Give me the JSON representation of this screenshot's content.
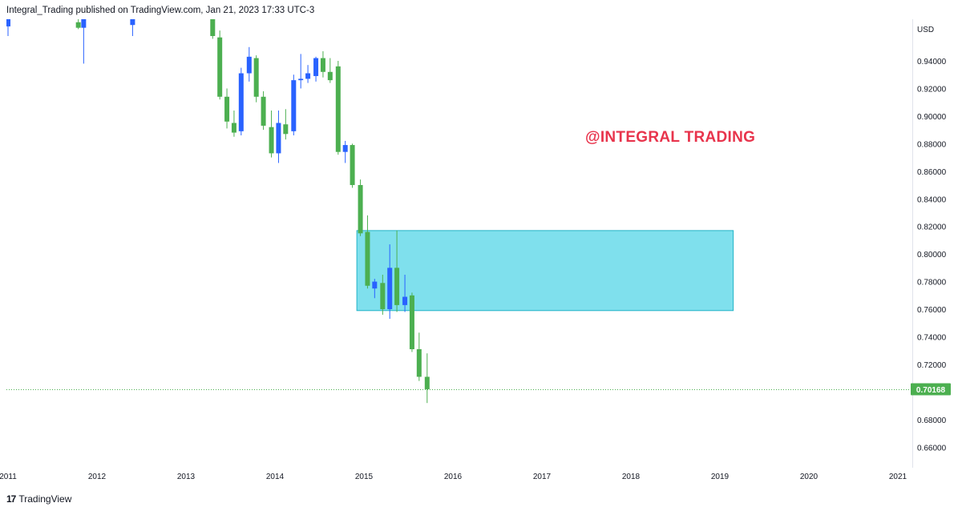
{
  "header": {
    "text": "Integral_Trading published on TradingView.com, Jan 21, 2023 17:33 UTC-3"
  },
  "watermark": {
    "text": "@INTEGRAL TRADING"
  },
  "footer": {
    "brand": "TradingView",
    "logo_glyph": "17"
  },
  "chart_data": {
    "type": "candlestick",
    "currency": "USD",
    "y_ticks": [
      "0.96000",
      "0.94000",
      "0.92000",
      "0.90000",
      "0.88000",
      "0.86000",
      "0.84000",
      "0.82000",
      "0.80000",
      "0.78000",
      "0.76000",
      "0.74000",
      "0.72000",
      "0.70000",
      "0.68000",
      "0.66000"
    ],
    "y_tick_labels_shown": [
      "0.94000",
      "0.92000",
      "0.90000",
      "0.88000",
      "0.86000",
      "0.84000",
      "0.82000",
      "0.80000",
      "0.78000",
      "0.76000",
      "0.74000",
      "0.72000",
      "0.68000",
      "0.66000"
    ],
    "x_ticks": [
      "2011",
      "2012",
      "2013",
      "2014",
      "2015",
      "2016",
      "2017",
      "2018",
      "2019",
      "2020",
      "2021"
    ],
    "ylim": [
      0.64844,
      0.97094
    ],
    "last_price": {
      "value": 0.70168,
      "label": "0.70168",
      "color": "#4caf50"
    },
    "zone": {
      "from_date": 2014.92,
      "to_date": 2019.15,
      "top": 0.817,
      "bottom": 0.759,
      "color": "#4dd4e6"
    },
    "colors": {
      "up": "#2962ff",
      "down": "#4caf50"
    },
    "candles": [
      {
        "t": 2011.0,
        "o": 0.965,
        "h": 0.972,
        "l": 0.958,
        "c": 0.972
      },
      {
        "t": 2011.79,
        "o": 0.968,
        "h": 0.972,
        "l": 0.963,
        "c": 0.964
      },
      {
        "t": 2011.85,
        "o": 0.964,
        "h": 0.972,
        "l": 0.938,
        "c": 0.972
      },
      {
        "t": 2012.4,
        "o": 0.966,
        "h": 0.972,
        "l": 0.958,
        "c": 0.972
      },
      {
        "t": 2013.3,
        "o": 0.972,
        "h": 0.972,
        "l": 0.956,
        "c": 0.958
      },
      {
        "t": 2013.38,
        "o": 0.957,
        "h": 0.962,
        "l": 0.912,
        "c": 0.914
      },
      {
        "t": 2013.46,
        "o": 0.914,
        "h": 0.92,
        "l": 0.891,
        "c": 0.896
      },
      {
        "t": 2013.54,
        "o": 0.895,
        "h": 0.904,
        "l": 0.885,
        "c": 0.888
      },
      {
        "t": 2013.62,
        "o": 0.889,
        "h": 0.935,
        "l": 0.886,
        "c": 0.931
      },
      {
        "t": 2013.71,
        "o": 0.931,
        "h": 0.95,
        "l": 0.925,
        "c": 0.943
      },
      {
        "t": 2013.79,
        "o": 0.942,
        "h": 0.944,
        "l": 0.91,
        "c": 0.914
      },
      {
        "t": 2013.87,
        "o": 0.914,
        "h": 0.918,
        "l": 0.89,
        "c": 0.893
      },
      {
        "t": 2013.96,
        "o": 0.892,
        "h": 0.904,
        "l": 0.87,
        "c": 0.873
      },
      {
        "t": 2014.04,
        "o": 0.873,
        "h": 0.904,
        "l": 0.866,
        "c": 0.895
      },
      {
        "t": 2014.12,
        "o": 0.894,
        "h": 0.905,
        "l": 0.883,
        "c": 0.887
      },
      {
        "t": 2014.21,
        "o": 0.889,
        "h": 0.93,
        "l": 0.886,
        "c": 0.926
      },
      {
        "t": 2014.29,
        "o": 0.926,
        "h": 0.945,
        "l": 0.92,
        "c": 0.927
      },
      {
        "t": 2014.37,
        "o": 0.927,
        "h": 0.937,
        "l": 0.924,
        "c": 0.931
      },
      {
        "t": 2014.46,
        "o": 0.929,
        "h": 0.943,
        "l": 0.925,
        "c": 0.942
      },
      {
        "t": 2014.54,
        "o": 0.942,
        "h": 0.947,
        "l": 0.928,
        "c": 0.932
      },
      {
        "t": 2014.62,
        "o": 0.932,
        "h": 0.942,
        "l": 0.924,
        "c": 0.926
      },
      {
        "t": 2014.71,
        "o": 0.936,
        "h": 0.94,
        "l": 0.872,
        "c": 0.874
      },
      {
        "t": 2014.79,
        "o": 0.874,
        "h": 0.882,
        "l": 0.866,
        "c": 0.879
      },
      {
        "t": 2014.87,
        "o": 0.879,
        "h": 0.88,
        "l": 0.848,
        "c": 0.85
      },
      {
        "t": 2014.96,
        "o": 0.85,
        "h": 0.854,
        "l": 0.813,
        "c": 0.815
      },
      {
        "t": 2015.04,
        "o": 0.816,
        "h": 0.828,
        "l": 0.775,
        "c": 0.777
      },
      {
        "t": 2015.12,
        "o": 0.775,
        "h": 0.782,
        "l": 0.768,
        "c": 0.78
      },
      {
        "t": 2015.21,
        "o": 0.779,
        "h": 0.785,
        "l": 0.756,
        "c": 0.76
      },
      {
        "t": 2015.29,
        "o": 0.76,
        "h": 0.807,
        "l": 0.753,
        "c": 0.79
      },
      {
        "t": 2015.37,
        "o": 0.79,
        "h": 0.817,
        "l": 0.758,
        "c": 0.763
      },
      {
        "t": 2015.46,
        "o": 0.763,
        "h": 0.785,
        "l": 0.758,
        "c": 0.769
      },
      {
        "t": 2015.54,
        "o": 0.77,
        "h": 0.772,
        "l": 0.729,
        "c": 0.731
      },
      {
        "t": 2015.62,
        "o": 0.731,
        "h": 0.743,
        "l": 0.708,
        "c": 0.711
      },
      {
        "t": 2015.71,
        "o": 0.711,
        "h": 0.728,
        "l": 0.692,
        "c": 0.702
      }
    ]
  }
}
